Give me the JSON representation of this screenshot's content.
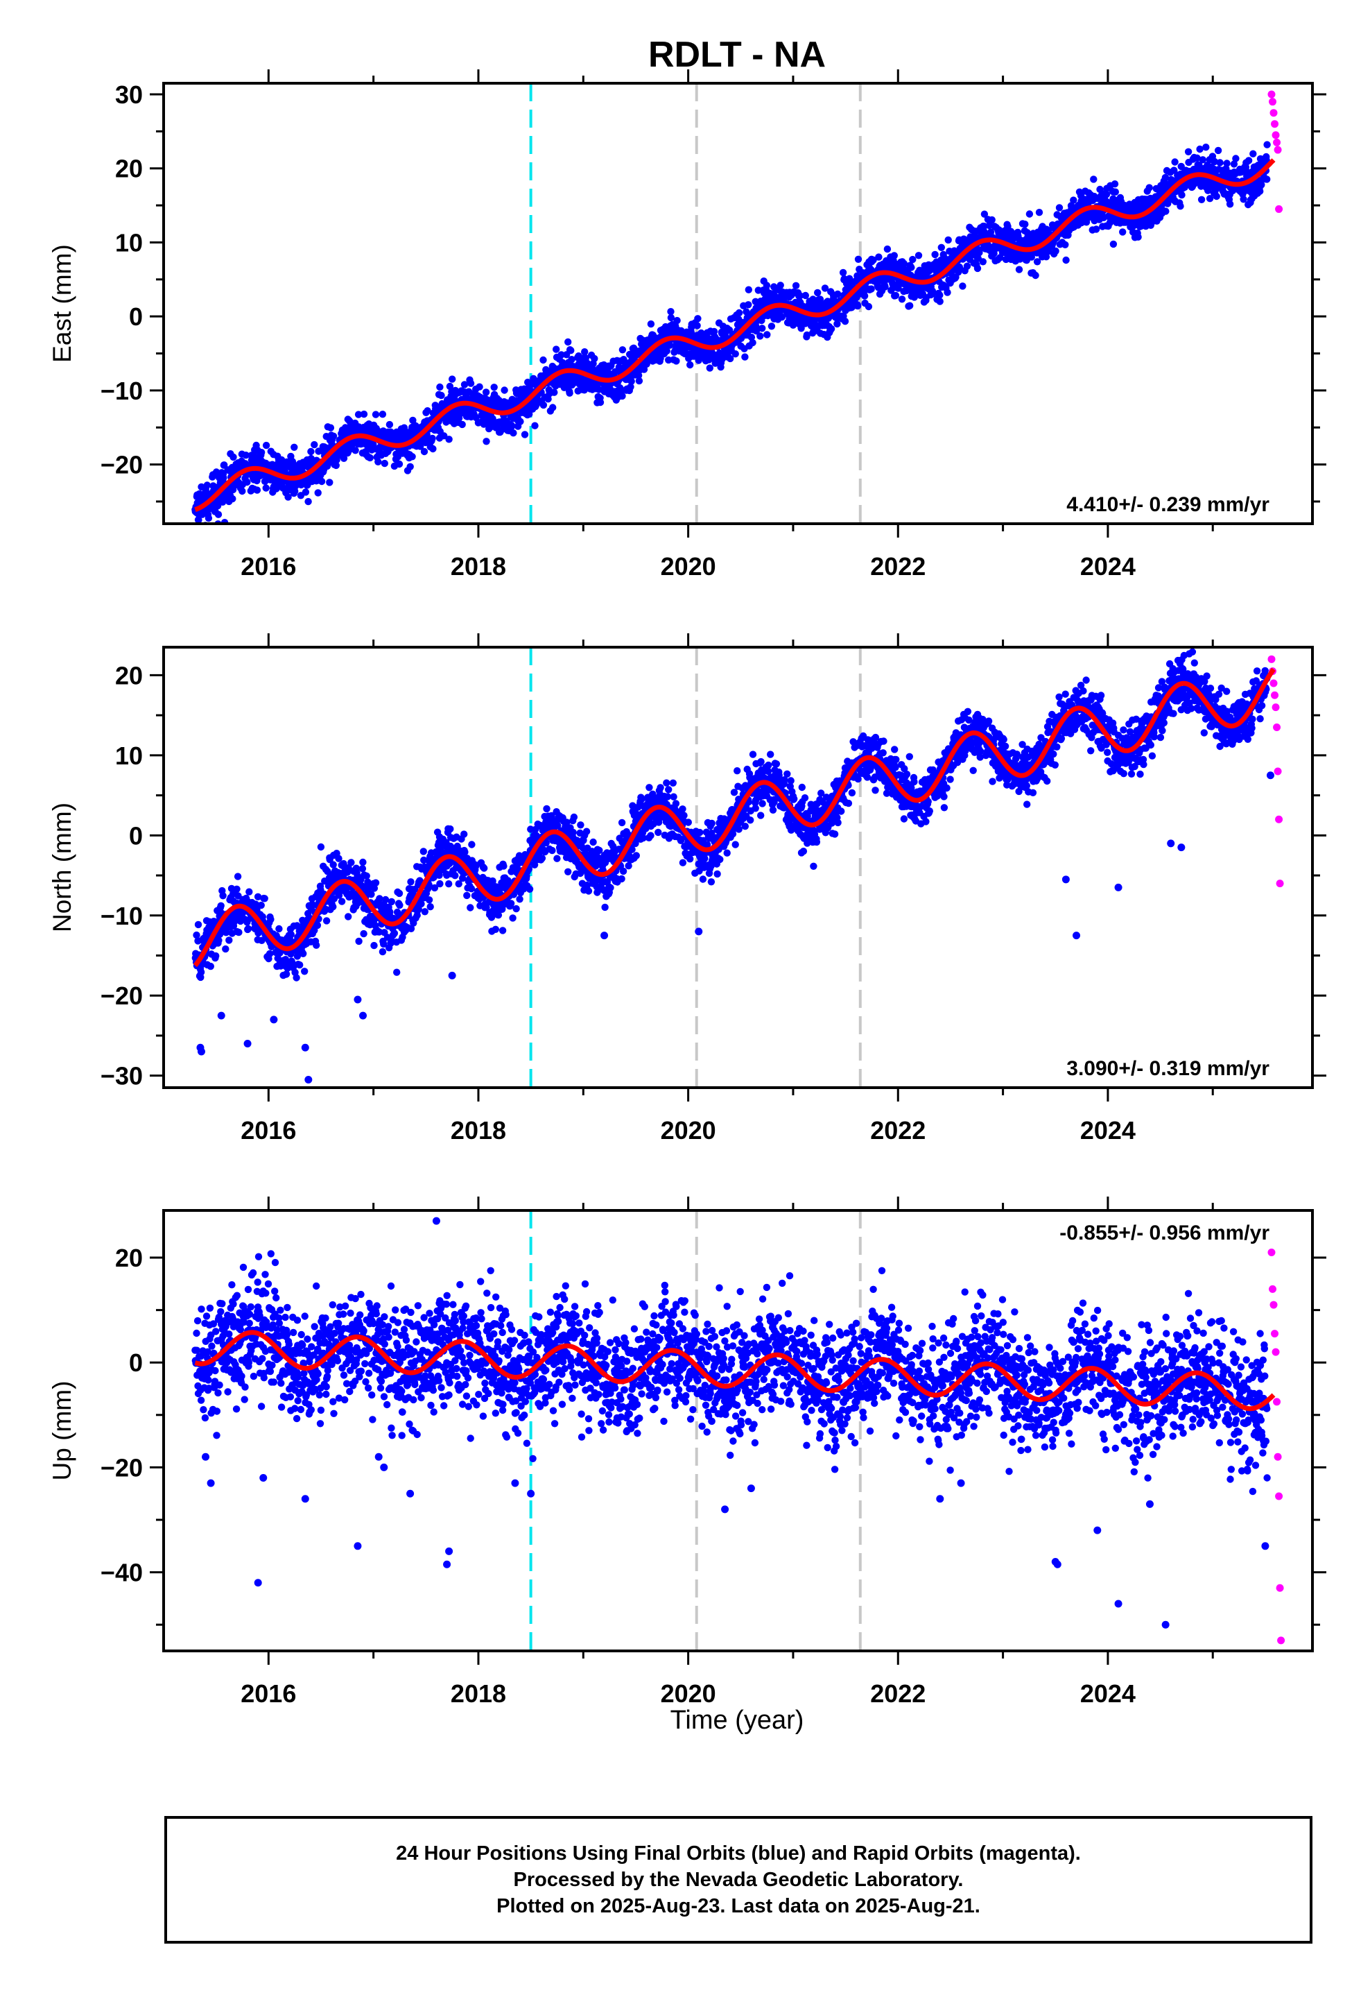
{
  "title": "RDLT - NA",
  "colors": {
    "final_orbits": "#0000ff",
    "rapid_orbits": "#ff00ff",
    "trend_line": "#ff0000",
    "equipment_change": "#00e5ee",
    "other_event": "#c8c8c8",
    "frame": "#000000"
  },
  "xaxis": {
    "label": "Time (year)",
    "range": [
      2015.0,
      2025.95
    ],
    "ticks": [
      2016,
      2018,
      2020,
      2022,
      2024
    ]
  },
  "events": {
    "cyan": [
      2018.5
    ],
    "gray": [
      2020.08,
      2021.64
    ]
  },
  "footer": {
    "line1": "24 Hour Positions Using Final Orbits (blue) and Rapid Orbits (magenta).",
    "line2": "Processed by the Nevada Geodetic Laboratory.",
    "line3": "Plotted on 2025-Aug-23. Last data on 2025-Aug-21."
  },
  "chart_data": [
    {
      "type": "scatter",
      "component": "east",
      "ylabel": "East (mm)",
      "ylim": [
        -28,
        31.5
      ],
      "yticks": [
        -20,
        -10,
        0,
        10,
        20,
        30
      ],
      "xticks": [
        2016,
        2018,
        2020,
        2022,
        2024
      ],
      "grid": false,
      "rate_text": "4.410+/- 0.239 mm/yr",
      "rate_position": "bottom-right",
      "model": {
        "t0": 2015.3,
        "v0": -24.5,
        "rate": 4.41,
        "seasonal_amp": 1.6,
        "phase": 0.55,
        "noise": 1.4,
        "steps": []
      },
      "start": 2015.3,
      "end": 2025.52,
      "rapid": {
        "x": [
          2025.56,
          2025.57,
          2025.58,
          2025.59,
          2025.6,
          2025.61,
          2025.62,
          2025.63
        ],
        "y": [
          30,
          29,
          27.5,
          26,
          24.5,
          23.5,
          22.5,
          14.5
        ]
      },
      "outliers": {
        "x": [],
        "y": []
      }
    },
    {
      "type": "scatter",
      "component": "north",
      "ylabel": "North (mm)",
      "ylim": [
        -31.5,
        23.5
      ],
      "yticks": [
        -30,
        -20,
        -10,
        0,
        10,
        20
      ],
      "xticks": [
        2016,
        2018,
        2020,
        2022,
        2024
      ],
      "grid": false,
      "rate_text": "3.090+/- 0.319 mm/yr",
      "rate_position": "bottom-right",
      "model": {
        "t0": 2015.3,
        "v0": -13.5,
        "rate": 3.09,
        "seasonal_amp": 3.4,
        "phase": 0.45,
        "noise": 1.6,
        "steps": []
      },
      "start": 2015.3,
      "end": 2025.52,
      "rapid": {
        "x": [
          2025.56,
          2025.57,
          2025.58,
          2025.59,
          2025.6,
          2025.61,
          2025.62,
          2025.63,
          2025.64
        ],
        "y": [
          22,
          20.5,
          19,
          17.5,
          16,
          13.5,
          8,
          2,
          -6
        ]
      },
      "outliers": {
        "x": [
          2015.35,
          2015.36,
          2015.55,
          2015.8,
          2016.05,
          2016.35,
          2016.38,
          2016.85,
          2016.9,
          2017.75,
          2019.2,
          2020.1,
          2023.6,
          2023.7,
          2024.1,
          2024.6,
          2024.7,
          2025.55
        ],
        "y": [
          -26.5,
          -27,
          -22.5,
          -26,
          -23,
          -26.5,
          -30.5,
          -20.5,
          -22.5,
          -17.5,
          -12.5,
          -12,
          -5.5,
          -12.5,
          -6.5,
          -1,
          -1.5,
          7.5
        ]
      }
    },
    {
      "type": "scatter",
      "component": "up",
      "ylabel": "Up (mm)",
      "ylim": [
        -55,
        29
      ],
      "yticks": [
        -40,
        -20,
        0,
        20
      ],
      "xticks": [
        2016,
        2018,
        2020,
        2022,
        2024
      ],
      "grid": false,
      "rate_text": "-0.855+/- 0.956 mm/yr",
      "rate_position": "top-right",
      "model": {
        "t0": 2015.3,
        "v0": 3.0,
        "rate": -0.855,
        "seasonal_amp": 3.2,
        "phase": 0.6,
        "noise": 5.5,
        "steps": []
      },
      "start": 2015.3,
      "end": 2025.52,
      "rapid": {
        "x": [
          2025.56,
          2025.57,
          2025.58,
          2025.59,
          2025.6,
          2025.61,
          2025.62,
          2025.63,
          2025.64,
          2025.65
        ],
        "y": [
          21,
          14,
          11,
          5.5,
          2,
          -7.5,
          -18,
          -25.5,
          -43,
          -53
        ]
      },
      "outliers": {
        "x": [
          2015.4,
          2015.45,
          2015.9,
          2015.95,
          2016.35,
          2016.85,
          2017.05,
          2017.1,
          2017.35,
          2017.7,
          2017.72,
          2017.6,
          2018.35,
          2018.5,
          2020.35,
          2020.6,
          2022.4,
          2022.6,
          2023.5,
          2023.52,
          2023.9,
          2024.1,
          2024.4,
          2024.55,
          2025.5
        ],
        "y": [
          -18,
          -23,
          -42,
          -22,
          -26,
          -35,
          -18,
          -20,
          -25,
          -38.5,
          -36,
          27,
          -23,
          -25,
          -28,
          -24,
          -26,
          -23,
          -38,
          -38.5,
          -32,
          -46,
          -27,
          -50,
          -35
        ]
      }
    }
  ]
}
